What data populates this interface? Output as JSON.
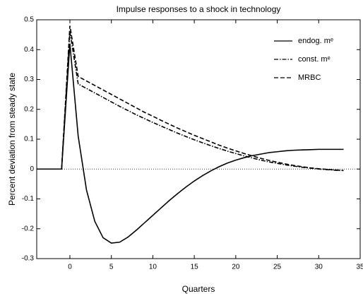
{
  "chart_data": {
    "type": "line",
    "title": "Impulse responses to a shock in technology",
    "x_label": "Quarters",
    "y_label": "Percent deviation from steady state",
    "x": [
      -4,
      -3,
      -2,
      -1,
      0,
      1,
      2,
      3,
      4,
      5,
      6,
      7,
      8,
      9,
      10,
      11,
      12,
      13,
      14,
      15,
      16,
      17,
      18,
      19,
      20,
      21,
      22,
      23,
      24,
      25,
      26,
      27,
      28,
      29,
      30,
      31,
      32,
      33
    ],
    "series": [
      {
        "name": "endog. mᵉ",
        "color": "#000000",
        "dash": "solid",
        "values": [
          0,
          0,
          0,
          0,
          0.42,
          0.11,
          -0.07,
          -0.175,
          -0.23,
          -0.248,
          -0.245,
          -0.228,
          -0.205,
          -0.18,
          -0.155,
          -0.13,
          -0.105,
          -0.082,
          -0.06,
          -0.04,
          -0.022,
          -0.006,
          0.008,
          0.02,
          0.03,
          0.038,
          0.045,
          0.05,
          0.055,
          0.058,
          0.061,
          0.063,
          0.064,
          0.065,
          0.066,
          0.066,
          0.066,
          0.066
        ]
      },
      {
        "name": "const. mᵉ",
        "color": "#000000",
        "dash": "dashdot",
        "values": [
          0,
          0,
          0,
          0,
          0.46,
          0.285,
          0.27,
          0.255,
          0.24,
          0.225,
          0.21,
          0.196,
          0.182,
          0.169,
          0.156,
          0.144,
          0.132,
          0.12,
          0.109,
          0.098,
          0.088,
          0.078,
          0.069,
          0.06,
          0.052,
          0.044,
          0.037,
          0.03,
          0.024,
          0.019,
          0.014,
          0.01,
          0.006,
          0.003,
          0.0,
          -0.002,
          -0.004,
          -0.005
        ]
      },
      {
        "name": "MRBC",
        "color": "#000000",
        "dash": "dashed",
        "values": [
          0,
          0,
          0,
          0,
          0.48,
          0.31,
          0.295,
          0.28,
          0.265,
          0.25,
          0.235,
          0.22,
          0.205,
          0.19,
          0.177,
          0.163,
          0.15,
          0.137,
          0.125,
          0.113,
          0.102,
          0.091,
          0.08,
          0.07,
          0.061,
          0.052,
          0.044,
          0.036,
          0.029,
          0.023,
          0.017,
          0.012,
          0.008,
          0.004,
          0.001,
          -0.001,
          -0.003,
          -0.005
        ]
      }
    ],
    "xlim": [
      -4,
      35
    ],
    "xticks": [
      0,
      5,
      10,
      15,
      20,
      25,
      30,
      35
    ],
    "ylim": [
      -0.3,
      0.5
    ],
    "yticks": [
      -0.3,
      -0.2,
      -0.1,
      0,
      0.1,
      0.2,
      0.3,
      0.4,
      0.5
    ],
    "zero_line": true,
    "legend": "upper right"
  }
}
